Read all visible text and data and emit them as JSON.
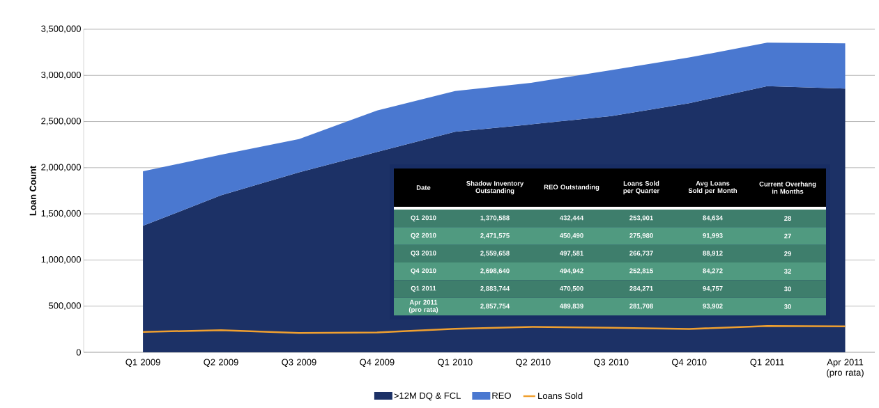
{
  "chart_data": {
    "type": "area",
    "stacked": true,
    "ylabel": "Loan Count",
    "grid": "y",
    "legend": "bottom",
    "categories": [
      "Q1 2009",
      "Q2 2009",
      "Q3 2009",
      "Q4 2009",
      "Q1 2010",
      "Q2 2010",
      "Q3 2010",
      "Q4 2010",
      "Q1 2011",
      "Apr 2011 (pro rata)"
    ],
    "series": [
      {
        "name": ">12M DQ & FCL",
        "color": "#1c3166",
        "values": [
          1370588,
          1700000,
          1950000,
          2170000,
          2390000,
          2471575,
          2559658,
          2698640,
          2883744,
          2857754
        ]
      },
      {
        "name": "REO",
        "color": "#4a78d0",
        "values": [
          590000,
          440000,
          360000,
          450000,
          440000,
          450490,
          497581,
          494942,
          470500,
          489839
        ]
      },
      {
        "name": "Loans Sold",
        "type": "line",
        "color": "#f0a030",
        "values": [
          220000,
          240000,
          210000,
          215000,
          255000,
          275980,
          266737,
          252815,
          284271,
          281708
        ]
      }
    ],
    "ylim": [
      0,
      3500000
    ],
    "yticks": [
      {
        "value": 0,
        "label": "0"
      },
      {
        "value": 500000,
        "label": "500,000"
      },
      {
        "value": 1000000,
        "label": "1,000,000"
      },
      {
        "value": 1500000,
        "label": "1,500,000"
      },
      {
        "value": 2000000,
        "label": "2,000,000"
      },
      {
        "value": 2500000,
        "label": "2,500,000"
      },
      {
        "value": 3000000,
        "label": "3,000,000"
      },
      {
        "value": 3500000,
        "label": "3,500,000"
      }
    ],
    "annotations": [
      "Date",
      "Shadow Inventory Outstanding",
      "REO Outstanding",
      "Loans Sold per Quarter",
      "Avg Loans Sold per Month",
      "Current Overhang in Months",
      "Q1 2010",
      "1,370,588",
      "432,444",
      "253,901",
      "84,634",
      "28",
      "Q2 2010",
      "2,471,575",
      "450,490",
      "275,980",
      "91,993",
      "27",
      "Q3 2010",
      "2,559,658",
      "497,581",
      "266,737",
      "88,912",
      "29",
      "Q4 2010",
      "2,698,640",
      "494,942",
      "252,815",
      "84,272",
      "32",
      "Q1 2011",
      "2,883,744",
      "470,500",
      "284,271",
      "94,757",
      "30",
      "Apr 2011 (pro rata)",
      "2,857,754",
      "489,839",
      "281,708",
      "93,902",
      "30"
    ]
  }
}
